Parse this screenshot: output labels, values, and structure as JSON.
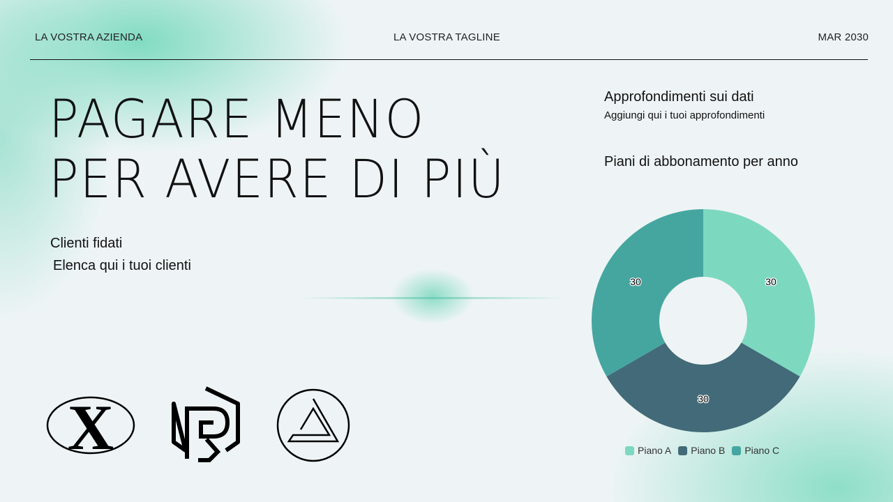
{
  "header": {
    "company": "LA VOSTRA AZIENDA",
    "tagline": "LA VOSTRA TAGLINE",
    "date": "MAR 2030"
  },
  "main": {
    "title_line1": "PAGARE MENO",
    "title_line2": "PER AVERE DI PIÙ",
    "clients_heading": "Clienti fidati",
    "clients_text": "Elenca qui i tuoi clienti"
  },
  "insights": {
    "heading": "Approfondimenti sui dati",
    "text": "Aggiungi qui i tuoi approfondimenti"
  },
  "logos": [
    "X",
    "R",
    "A"
  ],
  "chart_data": {
    "type": "pie",
    "donut": true,
    "title": "Piani di abbonamento per anno",
    "categories": [
      "Piano A",
      "Piano B",
      "Piano C"
    ],
    "values": [
      30,
      30,
      30
    ],
    "colors": [
      "#7dd8c0",
      "#426a78",
      "#45a6a0"
    ],
    "data_labels": true,
    "legend": "bottom"
  }
}
